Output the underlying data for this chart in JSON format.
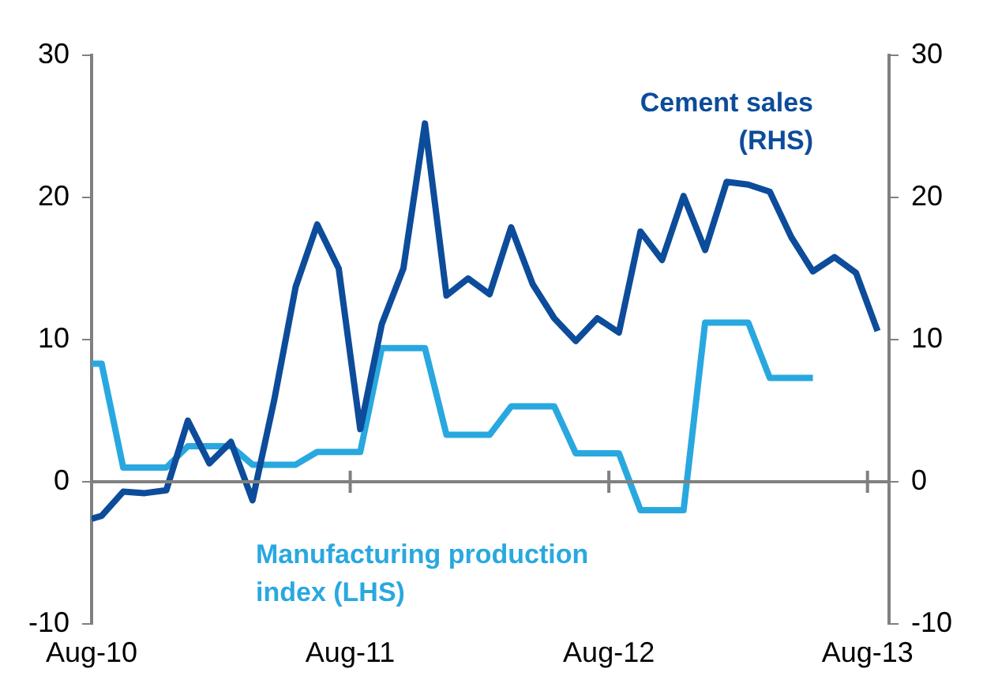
{
  "chart_data": {
    "type": "line",
    "xlim": [
      "2010-08",
      "2013-09"
    ],
    "xticks": [
      {
        "value": "2010-08",
        "label": "Aug-10"
      },
      {
        "value": "2011-08",
        "label": "Aug-11"
      },
      {
        "value": "2012-08",
        "label": "Aug-12"
      },
      {
        "value": "2013-08",
        "label": "Aug-13"
      }
    ],
    "ylim": [
      -10,
      30
    ],
    "yticks": [
      -10,
      0,
      10,
      20,
      30
    ],
    "y2lim": [
      -10,
      30
    ],
    "y2ticks": [
      -10,
      0,
      10,
      20,
      30
    ],
    "grid": false,
    "legend": false,
    "marker": "none",
    "line_style": "solid",
    "ref_lines": [
      {
        "axis": "y",
        "value": 0,
        "color": "#808080"
      }
    ],
    "series": [
      {
        "name": "Cement sales (RHS)",
        "color": "#0d4c9a",
        "axis": "y2",
        "x": [
          "2010-08",
          "2010-08-15",
          "2010-09-15",
          "2010-10-15",
          "2010-11-15",
          "2010-12-15",
          "2011-01-15",
          "2011-02-15",
          "2011-03-15",
          "2011-04-15",
          "2011-05-15",
          "2011-06-15",
          "2011-07-15",
          "2011-08-15",
          "2011-09-15",
          "2011-10-15",
          "2011-11-15",
          "2011-12-15",
          "2012-01-15",
          "2012-02-15",
          "2012-03-15",
          "2012-04-15",
          "2012-05-15",
          "2012-06-15",
          "2012-07-15",
          "2012-08-15",
          "2012-09-15",
          "2012-10-15",
          "2012-11-15",
          "2012-12-15",
          "2013-01-15",
          "2013-02-15",
          "2013-03-15",
          "2013-04-15",
          "2013-05-15",
          "2013-06-15",
          "2013-07-15",
          "2013-08-15"
        ],
        "values": [
          -2.6,
          -2.4,
          -0.7,
          -0.8,
          -0.6,
          4.3,
          1.3,
          2.8,
          -1.3,
          5.7,
          13.7,
          18.1,
          15.0,
          3.7,
          11.1,
          15.0,
          25.2,
          13.1,
          14.3,
          13.2,
          17.9,
          13.9,
          11.5,
          9.9,
          11.5,
          10.5,
          17.6,
          15.6,
          20.1,
          16.3,
          21.1,
          20.9,
          20.4,
          17.2,
          14.8,
          15.8,
          14.7,
          10.6
        ]
      },
      {
        "name": "Manufacturing production  index (LHS)",
        "color": "#29a8e0",
        "x": [
          "2010-08",
          "2010-08-15",
          "2010-09-15",
          "2010-10-15",
          "2010-11-15",
          "2010-12-15",
          "2011-01-15",
          "2011-02-15",
          "2011-03-15",
          "2011-04-15",
          "2011-05-15",
          "2011-06-15",
          "2011-07-15",
          "2011-08-15",
          "2011-09-15",
          "2011-10-15",
          "2011-11-15",
          "2011-12-15",
          "2012-01-15",
          "2012-02-15",
          "2012-03-15",
          "2012-04-15",
          "2012-05-15",
          "2012-06-15",
          "2012-07-15",
          "2012-08-15",
          "2012-09-15",
          "2012-10-15",
          "2012-11-15",
          "2012-12-15",
          "2013-01-15",
          "2013-02-15",
          "2013-03-15",
          "2013-04-15",
          "2013-05-15"
        ],
        "values": [
          8.3,
          8.3,
          1.0,
          1.0,
          1.0,
          2.5,
          2.5,
          2.5,
          1.2,
          1.2,
          1.2,
          2.1,
          2.1,
          2.1,
          9.4,
          9.4,
          9.4,
          3.3,
          3.3,
          3.3,
          5.3,
          5.3,
          5.3,
          2.0,
          2.0,
          2.0,
          -2.0,
          -2.0,
          -2.0,
          11.2,
          11.2,
          11.2,
          7.3,
          7.3,
          7.3
        ]
      }
    ]
  }
}
